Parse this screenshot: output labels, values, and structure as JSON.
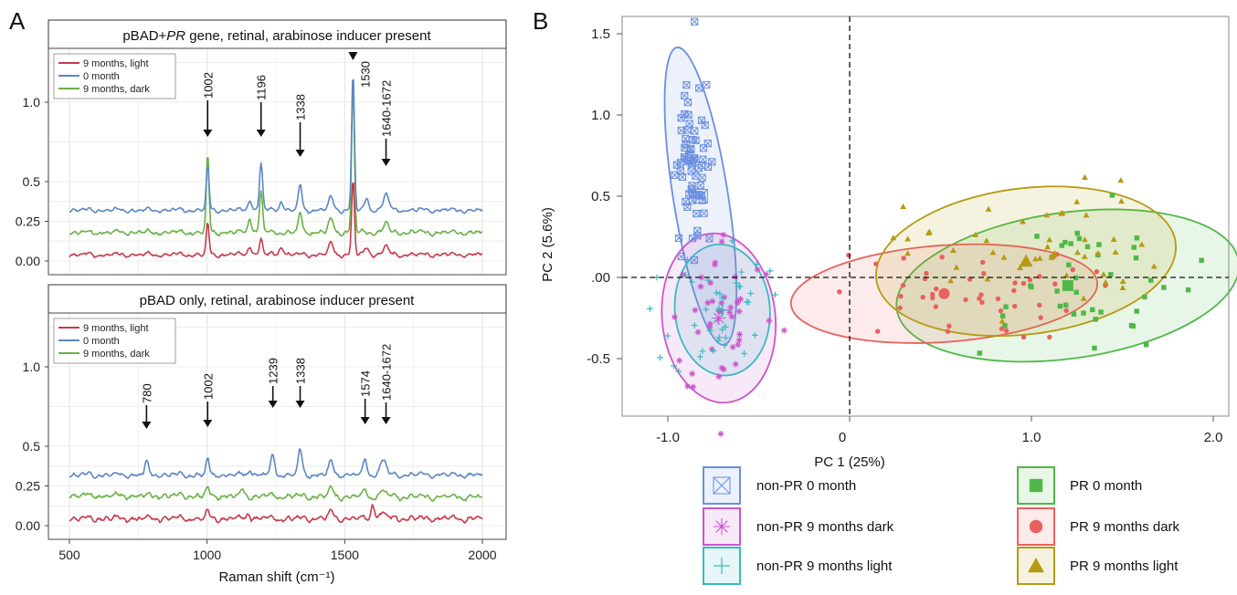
{
  "panel_a": {
    "letter": "A",
    "x_axis_label": "Raman shift (cm⁻¹)",
    "x_ticks": [
      "500",
      "1000",
      "1500",
      "2000"
    ],
    "y_ticks": [
      "0.00",
      "0.25",
      "0.5",
      "1.0"
    ],
    "series_colors": {
      "light": "#c8394b",
      "zero": "#5b87c5",
      "dark": "#68b245"
    },
    "top": {
      "title_prefix": "pBAD+",
      "title_italic": "PR",
      "title_suffix": " gene, retinal, arabinose inducer present",
      "legend": [
        "9 months, light",
        "0 month",
        "9 months, dark"
      ],
      "annotations": [
        "1002",
        "1196",
        "1338",
        "1530",
        "1640-1672"
      ]
    },
    "bottom": {
      "title": "pBAD only, retinal, arabinose inducer present",
      "legend": [
        "9 months, light",
        "0 month",
        "9 months, dark"
      ],
      "annotations": [
        "780",
        "1002",
        "1239",
        "1338",
        "1574",
        "1640-1672"
      ]
    }
  },
  "panel_b": {
    "letter": "B",
    "x_axis_label": "PC 1 (25%)",
    "y_axis_label": "PC 2 (5.6%)",
    "x_ticks": [
      "-1.0",
      "0",
      "1.0",
      "2.0"
    ],
    "y_ticks": [
      "1.5",
      "1.0",
      "0.5",
      ".00",
      "-0.5"
    ],
    "legend": [
      {
        "label": "non-PR 0 month",
        "color": "#6b8fe0",
        "icon": "boxed-x-square-icon"
      },
      {
        "label": "non-PR 9 months dark",
        "color": "#cc55cc",
        "icon": "asterisk-icon"
      },
      {
        "label": "non-PR 9 months light",
        "color": "#3bb9c2",
        "icon": "plus-icon"
      },
      {
        "label": "PR 0 month",
        "color": "#4fb848",
        "icon": "filled-square-icon"
      },
      {
        "label": "PR 9 months dark",
        "color": "#e8615e",
        "icon": "filled-circle-icon"
      },
      {
        "label": "PR 9 months light",
        "color": "#b59a12",
        "icon": "filled-triangle-icon"
      }
    ]
  },
  "chart_data": [
    {
      "type": "line",
      "xlim": [
        450,
        2030
      ],
      "ylim": [
        -0.05,
        1.5
      ],
      "series": [
        {
          "name": "9 months, light",
          "peaks_cm1": [
            1002,
            1196,
            1530
          ]
        },
        {
          "name": "0 month",
          "peaks_cm1": [
            1002,
            1196,
            1338,
            1530,
            1640
          ]
        },
        {
          "name": "9 months, dark",
          "peaks_cm1": [
            1002,
            1196,
            1338,
            1530,
            1640
          ]
        }
      ]
    },
    {
      "type": "line",
      "xlim": [
        450,
        2030
      ],
      "ylim": [
        -0.05,
        1.3
      ],
      "series": [
        {
          "name": "9 months, light",
          "peaks_cm1": [
            1002,
            1602
          ]
        },
        {
          "name": "0 month",
          "peaks_cm1": [
            780,
            1002,
            1239,
            1338,
            1574,
            1640
          ]
        },
        {
          "name": "9 months, dark",
          "peaks_cm1": [
            1002,
            1574
          ]
        }
      ]
    },
    {
      "type": "scatter",
      "xlim": [
        -1.25,
        2.1
      ],
      "ylim": [
        -0.85,
        1.6
      ],
      "series": [
        {
          "name": "non-PR 0 month",
          "centroid": [
            -0.82,
            0.5
          ],
          "ellipse_rx": 0.15,
          "ellipse_ry": 0.9
        },
        {
          "name": "non-PR 9 months dark",
          "centroid": [
            -0.72,
            -0.25
          ],
          "ellipse_rx": 0.31,
          "ellipse_ry": 0.52
        },
        {
          "name": "non-PR 9 months light",
          "centroid": [
            -0.7,
            -0.2
          ],
          "ellipse_rx": 0.26,
          "ellipse_ry": 0.4
        },
        {
          "name": "PR 0 month",
          "centroid": [
            1.2,
            -0.05
          ],
          "ellipse_rx": 0.95,
          "ellipse_ry": 0.45
        },
        {
          "name": "PR 9 months dark",
          "centroid": [
            0.52,
            -0.1
          ],
          "ellipse_rx": 0.84,
          "ellipse_ry": 0.3
        },
        {
          "name": "PR 9 months light",
          "centroid": [
            0.97,
            0.1
          ],
          "ellipse_rx": 0.83,
          "ellipse_ry": 0.45
        }
      ]
    }
  ]
}
